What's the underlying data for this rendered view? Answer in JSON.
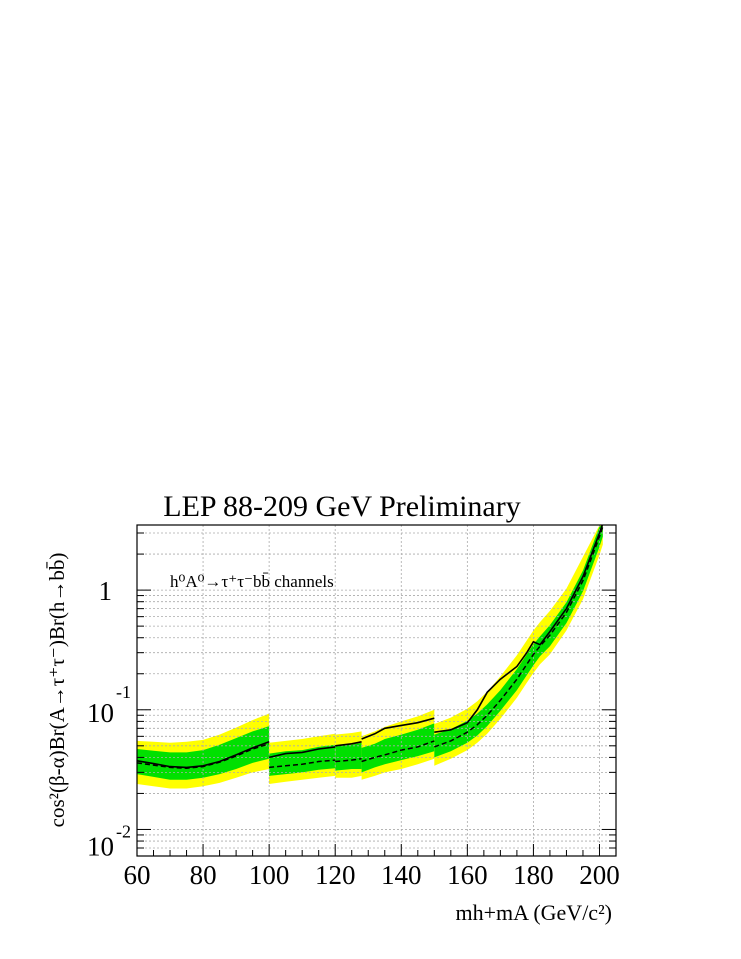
{
  "chart_data": {
    "type": "line",
    "title": "LEP 88-209 GeV Preliminary",
    "annotation": "h⁰A⁰→τ⁺τ⁻bb̄ channels",
    "xlabel": "mh+mA (GeV/c²)",
    "ylabel": "cos²(β-α)Br(A→τ⁺τ⁻)Br(h→bb̄)",
    "xlim": [
      60,
      205
    ],
    "ylim": [
      0.006,
      3.5
    ],
    "yscale": "log",
    "grid": true,
    "x_ticks": [
      "60",
      "80",
      "100",
      "120",
      "140",
      "160",
      "180",
      "200"
    ],
    "y_ticks": [
      {
        "base": "10",
        "exp": "-2",
        "value": 0.01
      },
      {
        "base": "10",
        "exp": "-1",
        "value": 0.1
      },
      {
        "base": "1",
        "exp": "",
        "value": 1
      }
    ],
    "segments": [
      {
        "x": [
          60,
          65,
          70,
          75,
          80,
          85,
          90,
          95,
          100
        ],
        "observed": [
          0.0375,
          0.0355,
          0.0335,
          0.033,
          0.034,
          0.037,
          0.042,
          0.048,
          0.054
        ],
        "expected": [
          0.036,
          0.0345,
          0.033,
          0.0325,
          0.0335,
          0.0365,
          0.041,
          0.047,
          0.052
        ],
        "band1_low": [
          0.029,
          0.0275,
          0.026,
          0.026,
          0.027,
          0.029,
          0.032,
          0.036,
          0.039
        ],
        "band1_high": [
          0.047,
          0.0455,
          0.044,
          0.044,
          0.046,
          0.051,
          0.058,
          0.066,
          0.073
        ],
        "band2_low": [
          0.024,
          0.023,
          0.022,
          0.022,
          0.023,
          0.0245,
          0.027,
          0.03,
          0.032
        ],
        "band2_high": [
          0.055,
          0.054,
          0.053,
          0.054,
          0.056,
          0.062,
          0.071,
          0.082,
          0.093
        ]
      },
      {
        "x": [
          100,
          105,
          110,
          115,
          120
        ],
        "observed": [
          0.04,
          0.043,
          0.044,
          0.047,
          0.049
        ],
        "expected": [
          0.033,
          0.034,
          0.035,
          0.037,
          0.038
        ],
        "band1_low": [
          0.028,
          0.029,
          0.03,
          0.0315,
          0.0325
        ],
        "band1_high": [
          0.043,
          0.045,
          0.046,
          0.049,
          0.051
        ],
        "band2_low": [
          0.024,
          0.025,
          0.026,
          0.027,
          0.028
        ],
        "band2_high": [
          0.053,
          0.055,
          0.057,
          0.06,
          0.063
        ]
      },
      {
        "x": [
          120,
          125,
          128
        ],
        "observed": [
          0.05,
          0.052,
          0.054
        ],
        "expected": [
          0.037,
          0.038,
          0.039
        ],
        "band1_low": [
          0.031,
          0.032,
          0.032
        ],
        "band1_high": [
          0.05,
          0.051,
          0.053
        ],
        "band2_low": [
          0.027,
          0.027,
          0.028
        ],
        "band2_high": [
          0.062,
          0.064,
          0.066
        ]
      },
      {
        "x": [
          128,
          132,
          135,
          140,
          145,
          150
        ],
        "observed": [
          0.057,
          0.063,
          0.07,
          0.074,
          0.078,
          0.085
        ],
        "expected": [
          0.037,
          0.04,
          0.042,
          0.046,
          0.049,
          0.055
        ],
        "band1_low": [
          0.03,
          0.033,
          0.035,
          0.038,
          0.041,
          0.045
        ],
        "band1_high": [
          0.048,
          0.052,
          0.057,
          0.062,
          0.068,
          0.077
        ],
        "band2_low": [
          0.026,
          0.028,
          0.03,
          0.032,
          0.035,
          0.039
        ],
        "band2_high": [
          0.06,
          0.066,
          0.072,
          0.08,
          0.088,
          0.1
        ]
      },
      {
        "x": [
          150,
          155,
          160,
          163,
          166,
          170,
          175,
          178,
          180,
          182,
          185,
          190,
          195,
          200,
          201
        ],
        "observed": [
          0.065,
          0.068,
          0.078,
          0.1,
          0.14,
          0.18,
          0.23,
          0.3,
          0.37,
          0.35,
          0.45,
          0.7,
          1.3,
          3.0,
          3.6
        ],
        "expected": [
          0.049,
          0.055,
          0.065,
          0.075,
          0.09,
          0.12,
          0.18,
          0.24,
          0.29,
          0.34,
          0.42,
          0.65,
          1.2,
          2.8,
          3.4
        ],
        "band1_low": [
          0.04,
          0.045,
          0.053,
          0.061,
          0.073,
          0.098,
          0.146,
          0.195,
          0.236,
          0.28,
          0.34,
          0.53,
          0.98,
          2.3,
          2.8
        ],
        "band1_high": [
          0.062,
          0.069,
          0.081,
          0.093,
          0.111,
          0.146,
          0.219,
          0.29,
          0.352,
          0.41,
          0.51,
          0.79,
          1.46,
          3.4,
          4.1
        ],
        "band2_low": [
          0.034,
          0.039,
          0.046,
          0.053,
          0.063,
          0.084,
          0.126,
          0.168,
          0.203,
          0.24,
          0.29,
          0.46,
          0.84,
          1.97,
          2.4
        ],
        "band2_high": [
          0.076,
          0.086,
          0.102,
          0.118,
          0.142,
          0.19,
          0.285,
          0.38,
          0.46,
          0.54,
          0.67,
          1.03,
          1.9,
          4.4,
          5.3
        ]
      }
    ],
    "colors": {
      "band2": "#ffff00",
      "band1": "#00e000",
      "observed": "#000000",
      "expected": "#000000",
      "grid": "#aaaaaa"
    }
  }
}
